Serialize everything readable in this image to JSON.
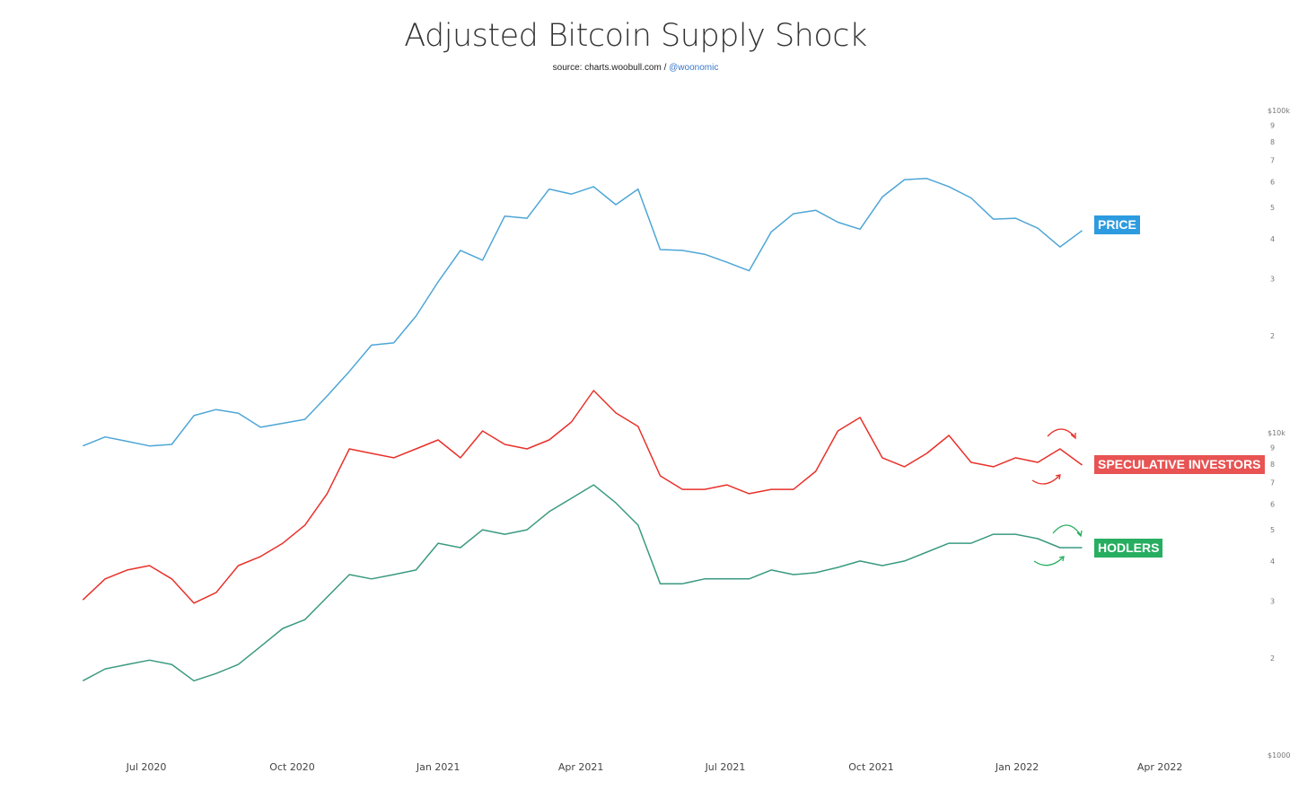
{
  "chart_data": {
    "type": "line",
    "title": "Adjusted Bitcoin Supply Shock",
    "subtitle_prefix": "source: charts.woobull.com / ",
    "subtitle_link": "@woonomic",
    "y_scale": "log",
    "ylim": [
      1000,
      100000
    ],
    "y_major_ticks": [
      {
        "value": 1000,
        "label": "$1000"
      },
      {
        "value": 10000,
        "label": "$10k"
      },
      {
        "value": 100000,
        "label": "$100k"
      }
    ],
    "y_minor_ticks": [
      {
        "value": 2000,
        "label": "2"
      },
      {
        "value": 3000,
        "label": "3"
      },
      {
        "value": 4000,
        "label": "4"
      },
      {
        "value": 5000,
        "label": "5"
      },
      {
        "value": 6000,
        "label": "6"
      },
      {
        "value": 7000,
        "label": "7"
      },
      {
        "value": 8000,
        "label": "8"
      },
      {
        "value": 9000,
        "label": "9"
      },
      {
        "value": 20000,
        "label": "2"
      },
      {
        "value": 30000,
        "label": "3"
      },
      {
        "value": 40000,
        "label": "4"
      },
      {
        "value": 50000,
        "label": "5"
      },
      {
        "value": 60000,
        "label": "6"
      },
      {
        "value": 70000,
        "label": "7"
      },
      {
        "value": 80000,
        "label": "8"
      },
      {
        "value": 90000,
        "label": "9"
      }
    ],
    "x_ticks": [
      {
        "date": "2020-07-01",
        "label": "Jul 2020"
      },
      {
        "date": "2020-10-01",
        "label": "Oct 2020"
      },
      {
        "date": "2021-01-01",
        "label": "Jan 2021"
      },
      {
        "date": "2021-04-01",
        "label": "Apr 2021"
      },
      {
        "date": "2021-07-01",
        "label": "Jul 2021"
      },
      {
        "date": "2021-10-01",
        "label": "Oct 2021"
      },
      {
        "date": "2022-01-01",
        "label": "Jan 2022"
      },
      {
        "date": "2022-04-01",
        "label": "Apr 2022"
      }
    ],
    "x_range": [
      "2020-05-22",
      "2022-04-30"
    ],
    "grid": false,
    "legend": "inline-right",
    "x": [
      "2020-05-22",
      "2020-06-05",
      "2020-06-19",
      "2020-07-03",
      "2020-07-17",
      "2020-07-31",
      "2020-08-14",
      "2020-08-28",
      "2020-09-11",
      "2020-09-25",
      "2020-10-09",
      "2020-10-23",
      "2020-11-06",
      "2020-11-20",
      "2020-12-04",
      "2020-12-18",
      "2021-01-01",
      "2021-01-15",
      "2021-01-29",
      "2021-02-12",
      "2021-02-26",
      "2021-03-12",
      "2021-03-26",
      "2021-04-09",
      "2021-04-23",
      "2021-05-07",
      "2021-05-21",
      "2021-06-04",
      "2021-06-18",
      "2021-07-02",
      "2021-07-16",
      "2021-07-30",
      "2021-08-13",
      "2021-08-27",
      "2021-09-10",
      "2021-09-24",
      "2021-10-08",
      "2021-10-22",
      "2021-11-05",
      "2021-11-19",
      "2021-12-03",
      "2021-12-17",
      "2021-12-31",
      "2022-01-14",
      "2022-01-28",
      "2022-02-11"
    ],
    "series": [
      {
        "name": "PRICE",
        "color": "#4ea6d6",
        "label_color": "#2d9be0",
        "values": [
          9100,
          9700,
          9400,
          9100,
          9200,
          11300,
          11800,
          11500,
          10400,
          10700,
          11000,
          13000,
          15500,
          18700,
          19000,
          23000,
          29400,
          36800,
          34300,
          47000,
          46300,
          57000,
          55000,
          58000,
          51000,
          57000,
          37000,
          36800,
          35800,
          33800,
          31800,
          42000,
          47800,
          49000,
          45000,
          42800,
          53900,
          61000,
          61500,
          58000,
          53500,
          46000,
          46300,
          43100,
          37700,
          42400
        ]
      },
      {
        "name": "SPECULATIVE INVESTORS",
        "color": "#e8312a",
        "label_color": "#e85353",
        "values": [
          3030,
          3520,
          3750,
          3870,
          3520,
          2960,
          3190,
          3870,
          4130,
          4540,
          5170,
          6470,
          8910,
          8630,
          8360,
          8910,
          9500,
          8360,
          10130,
          9200,
          8910,
          9500,
          10800,
          13520,
          11520,
          10460,
          7350,
          6670,
          6670,
          6890,
          6470,
          6670,
          6670,
          7590,
          10130,
          11150,
          8360,
          7840,
          8630,
          9810,
          8090,
          7840,
          8360,
          8090,
          8910,
          7940
        ]
      },
      {
        "name": "HODLERS",
        "color": "#3a9a80",
        "label_color": "#27ae60",
        "values": [
          1700,
          1850,
          1910,
          1970,
          1910,
          1700,
          1790,
          1910,
          2170,
          2470,
          2630,
          3090,
          3630,
          3520,
          3630,
          3750,
          4540,
          4400,
          5000,
          4840,
          5000,
          5690,
          6260,
          6890,
          6060,
          5170,
          3400,
          3400,
          3520,
          3520,
          3520,
          3750,
          3630,
          3680,
          3820,
          4000,
          3870,
          4000,
          4260,
          4540,
          4540,
          4840,
          4840,
          4690,
          4400,
          4400
        ]
      }
    ]
  }
}
